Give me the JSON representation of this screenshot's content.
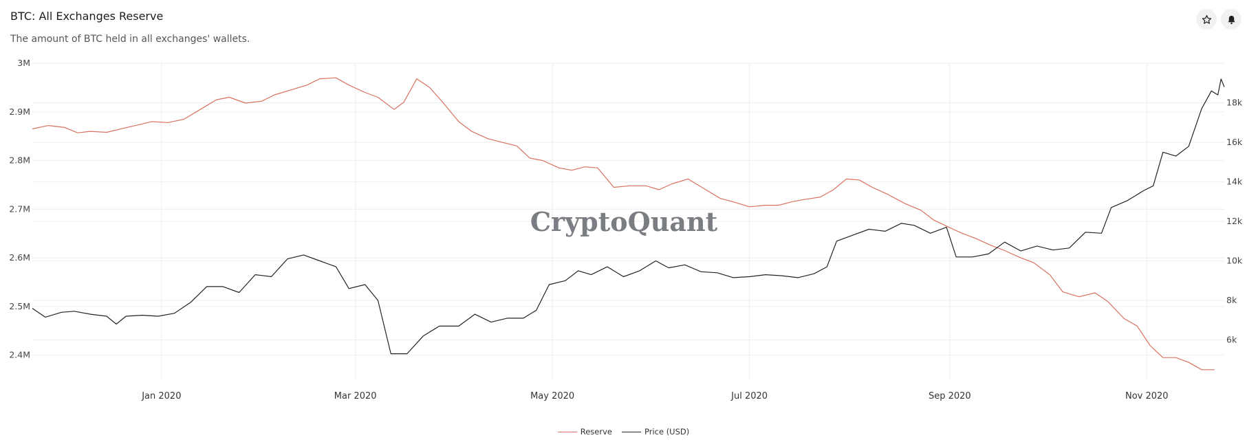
{
  "header": {
    "title": "BTC: All Exchanges Reserve",
    "subtitle": "The amount of BTC held in all exchanges' wallets."
  },
  "toolbar": {
    "star_icon": "star-icon",
    "bell_icon": "bell-icon"
  },
  "watermark": "CryptoQuant",
  "colors": {
    "reserve": "#d9705f",
    "price": "#222222",
    "grid": "#eeeeee"
  },
  "chart_data": {
    "type": "line",
    "x_range": [
      "2019-11-22",
      "2020-11-25"
    ],
    "x_ticks": [
      {
        "date": "2020-01-01",
        "label": "Jan 2020"
      },
      {
        "date": "2020-03-01",
        "label": "Mar 2020"
      },
      {
        "date": "2020-05-01",
        "label": "May 2020"
      },
      {
        "date": "2020-07-01",
        "label": "Jul 2020"
      },
      {
        "date": "2020-09-01",
        "label": "Sep 2020"
      },
      {
        "date": "2020-11-01",
        "label": "Nov 2020"
      }
    ],
    "y_left": {
      "range": [
        2350000,
        3000000
      ],
      "ticks": [
        {
          "value": 2400000,
          "label": "2.4M"
        },
        {
          "value": 2500000,
          "label": "2.5M"
        },
        {
          "value": 2600000,
          "label": "2.6M"
        },
        {
          "value": 2700000,
          "label": "2.7M"
        },
        {
          "value": 2800000,
          "label": "2.8M"
        },
        {
          "value": 2900000,
          "label": "2.9M"
        },
        {
          "value": 3000000,
          "label": "3M"
        }
      ]
    },
    "y_right": {
      "range": [
        4000,
        20000
      ],
      "ticks": [
        {
          "value": 6000,
          "label": "6k"
        },
        {
          "value": 8000,
          "label": "8k"
        },
        {
          "value": 10000,
          "label": "10k"
        },
        {
          "value": 12000,
          "label": "12k"
        },
        {
          "value": 14000,
          "label": "14k"
        },
        {
          "value": 16000,
          "label": "16k"
        },
        {
          "value": 18000,
          "label": "18k"
        }
      ]
    },
    "grid": true,
    "legend_position": "bottom-center",
    "series": [
      {
        "name": "Reserve",
        "axis": "left",
        "points": [
          [
            "2019-11-22",
            2865000
          ],
          [
            "2019-11-27",
            2872000
          ],
          [
            "2019-12-02",
            2868000
          ],
          [
            "2019-12-06",
            2857000
          ],
          [
            "2019-12-10",
            2860000
          ],
          [
            "2019-12-15",
            2858000
          ],
          [
            "2019-12-20",
            2866000
          ],
          [
            "2019-12-24",
            2872000
          ],
          [
            "2019-12-29",
            2880000
          ],
          [
            "2020-01-03",
            2878000
          ],
          [
            "2020-01-08",
            2885000
          ],
          [
            "2020-01-13",
            2905000
          ],
          [
            "2020-01-18",
            2925000
          ],
          [
            "2020-01-22",
            2930000
          ],
          [
            "2020-01-27",
            2918000
          ],
          [
            "2020-02-01",
            2922000
          ],
          [
            "2020-02-05",
            2935000
          ],
          [
            "2020-02-10",
            2945000
          ],
          [
            "2020-02-15",
            2955000
          ],
          [
            "2020-02-19",
            2968000
          ],
          [
            "2020-02-24",
            2970000
          ],
          [
            "2020-02-28",
            2955000
          ],
          [
            "2020-03-04",
            2940000
          ],
          [
            "2020-03-08",
            2930000
          ],
          [
            "2020-03-13",
            2905000
          ],
          [
            "2020-03-16",
            2920000
          ],
          [
            "2020-03-20",
            2968000
          ],
          [
            "2020-03-24",
            2950000
          ],
          [
            "2020-03-28",
            2920000
          ],
          [
            "2020-04-02",
            2880000
          ],
          [
            "2020-04-06",
            2860000
          ],
          [
            "2020-04-11",
            2845000
          ],
          [
            "2020-04-15",
            2838000
          ],
          [
            "2020-04-20",
            2830000
          ],
          [
            "2020-04-24",
            2805000
          ],
          [
            "2020-04-28",
            2800000
          ],
          [
            "2020-05-03",
            2785000
          ],
          [
            "2020-05-07",
            2780000
          ],
          [
            "2020-05-11",
            2787000
          ],
          [
            "2020-05-15",
            2785000
          ],
          [
            "2020-05-20",
            2745000
          ],
          [
            "2020-05-25",
            2748000
          ],
          [
            "2020-05-30",
            2748000
          ],
          [
            "2020-06-03",
            2740000
          ],
          [
            "2020-06-07",
            2752000
          ],
          [
            "2020-06-12",
            2762000
          ],
          [
            "2020-06-17",
            2742000
          ],
          [
            "2020-06-22",
            2722000
          ],
          [
            "2020-06-26",
            2715000
          ],
          [
            "2020-07-01",
            2705000
          ],
          [
            "2020-07-06",
            2708000
          ],
          [
            "2020-07-10",
            2708000
          ],
          [
            "2020-07-14",
            2715000
          ],
          [
            "2020-07-18",
            2720000
          ],
          [
            "2020-07-23",
            2725000
          ],
          [
            "2020-07-27",
            2740000
          ],
          [
            "2020-07-31",
            2762000
          ],
          [
            "2020-08-04",
            2760000
          ],
          [
            "2020-08-08",
            2745000
          ],
          [
            "2020-08-13",
            2730000
          ],
          [
            "2020-08-18",
            2712000
          ],
          [
            "2020-08-23",
            2698000
          ],
          [
            "2020-08-27",
            2678000
          ],
          [
            "2020-09-01",
            2662000
          ],
          [
            "2020-09-05",
            2650000
          ],
          [
            "2020-09-09",
            2640000
          ],
          [
            "2020-09-14",
            2625000
          ],
          [
            "2020-09-18",
            2615000
          ],
          [
            "2020-09-23",
            2600000
          ],
          [
            "2020-09-27",
            2590000
          ],
          [
            "2020-10-02",
            2565000
          ],
          [
            "2020-10-06",
            2530000
          ],
          [
            "2020-10-11",
            2520000
          ],
          [
            "2020-10-16",
            2528000
          ],
          [
            "2020-10-20",
            2510000
          ],
          [
            "2020-10-25",
            2475000
          ],
          [
            "2020-10-29",
            2460000
          ],
          [
            "2020-11-02",
            2420000
          ],
          [
            "2020-11-06",
            2395000
          ],
          [
            "2020-11-10",
            2395000
          ],
          [
            "2020-11-14",
            2385000
          ],
          [
            "2020-11-18",
            2370000
          ],
          [
            "2020-11-22",
            2370000
          ]
        ]
      },
      {
        "name": "Price (USD)",
        "axis": "right",
        "points": [
          [
            "2019-11-22",
            7600
          ],
          [
            "2019-11-26",
            7150
          ],
          [
            "2019-12-01",
            7400
          ],
          [
            "2019-12-05",
            7450
          ],
          [
            "2019-12-10",
            7300
          ],
          [
            "2019-12-15",
            7200
          ],
          [
            "2019-12-18",
            6800
          ],
          [
            "2019-12-21",
            7200
          ],
          [
            "2019-12-26",
            7250
          ],
          [
            "2019-12-31",
            7200
          ],
          [
            "2020-01-05",
            7350
          ],
          [
            "2020-01-10",
            7900
          ],
          [
            "2020-01-15",
            8700
          ],
          [
            "2020-01-20",
            8700
          ],
          [
            "2020-01-25",
            8400
          ],
          [
            "2020-01-30",
            9300
          ],
          [
            "2020-02-04",
            9200
          ],
          [
            "2020-02-09",
            10100
          ],
          [
            "2020-02-14",
            10300
          ],
          [
            "2020-02-19",
            10000
          ],
          [
            "2020-02-24",
            9700
          ],
          [
            "2020-02-28",
            8600
          ],
          [
            "2020-03-04",
            8800
          ],
          [
            "2020-03-08",
            8000
          ],
          [
            "2020-03-12",
            5300
          ],
          [
            "2020-03-17",
            5300
          ],
          [
            "2020-03-22",
            6200
          ],
          [
            "2020-03-27",
            6700
          ],
          [
            "2020-04-02",
            6700
          ],
          [
            "2020-04-07",
            7300
          ],
          [
            "2020-04-12",
            6900
          ],
          [
            "2020-04-17",
            7100
          ],
          [
            "2020-04-22",
            7100
          ],
          [
            "2020-04-26",
            7500
          ],
          [
            "2020-04-30",
            8800
          ],
          [
            "2020-05-05",
            9000
          ],
          [
            "2020-05-09",
            9500
          ],
          [
            "2020-05-13",
            9300
          ],
          [
            "2020-05-18",
            9700
          ],
          [
            "2020-05-23",
            9200
          ],
          [
            "2020-05-28",
            9500
          ],
          [
            "2020-06-02",
            10000
          ],
          [
            "2020-06-06",
            9650
          ],
          [
            "2020-06-11",
            9800
          ],
          [
            "2020-06-16",
            9450
          ],
          [
            "2020-06-21",
            9400
          ],
          [
            "2020-06-26",
            9150
          ],
          [
            "2020-07-01",
            9200
          ],
          [
            "2020-07-06",
            9300
          ],
          [
            "2020-07-11",
            9250
          ],
          [
            "2020-07-16",
            9150
          ],
          [
            "2020-07-21",
            9350
          ],
          [
            "2020-07-25",
            9700
          ],
          [
            "2020-07-28",
            11000
          ],
          [
            "2020-08-02",
            11300
          ],
          [
            "2020-08-07",
            11600
          ],
          [
            "2020-08-12",
            11500
          ],
          [
            "2020-08-17",
            11900
          ],
          [
            "2020-08-21",
            11800
          ],
          [
            "2020-08-26",
            11400
          ],
          [
            "2020-08-31",
            11700
          ],
          [
            "2020-09-03",
            10200
          ],
          [
            "2020-09-08",
            10200
          ],
          [
            "2020-09-13",
            10350
          ],
          [
            "2020-09-18",
            10950
          ],
          [
            "2020-09-23",
            10500
          ],
          [
            "2020-09-28",
            10750
          ],
          [
            "2020-10-03",
            10550
          ],
          [
            "2020-10-08",
            10650
          ],
          [
            "2020-10-13",
            11450
          ],
          [
            "2020-10-18",
            11400
          ],
          [
            "2020-10-21",
            12700
          ],
          [
            "2020-10-26",
            13050
          ],
          [
            "2020-10-31",
            13550
          ],
          [
            "2020-11-03",
            13800
          ],
          [
            "2020-11-06",
            15500
          ],
          [
            "2020-11-10",
            15300
          ],
          [
            "2020-11-14",
            15800
          ],
          [
            "2020-11-18",
            17700
          ],
          [
            "2020-11-21",
            18600
          ],
          [
            "2020-11-23",
            18400
          ],
          [
            "2020-11-24",
            19200
          ],
          [
            "2020-11-25",
            18800
          ]
        ]
      }
    ]
  }
}
